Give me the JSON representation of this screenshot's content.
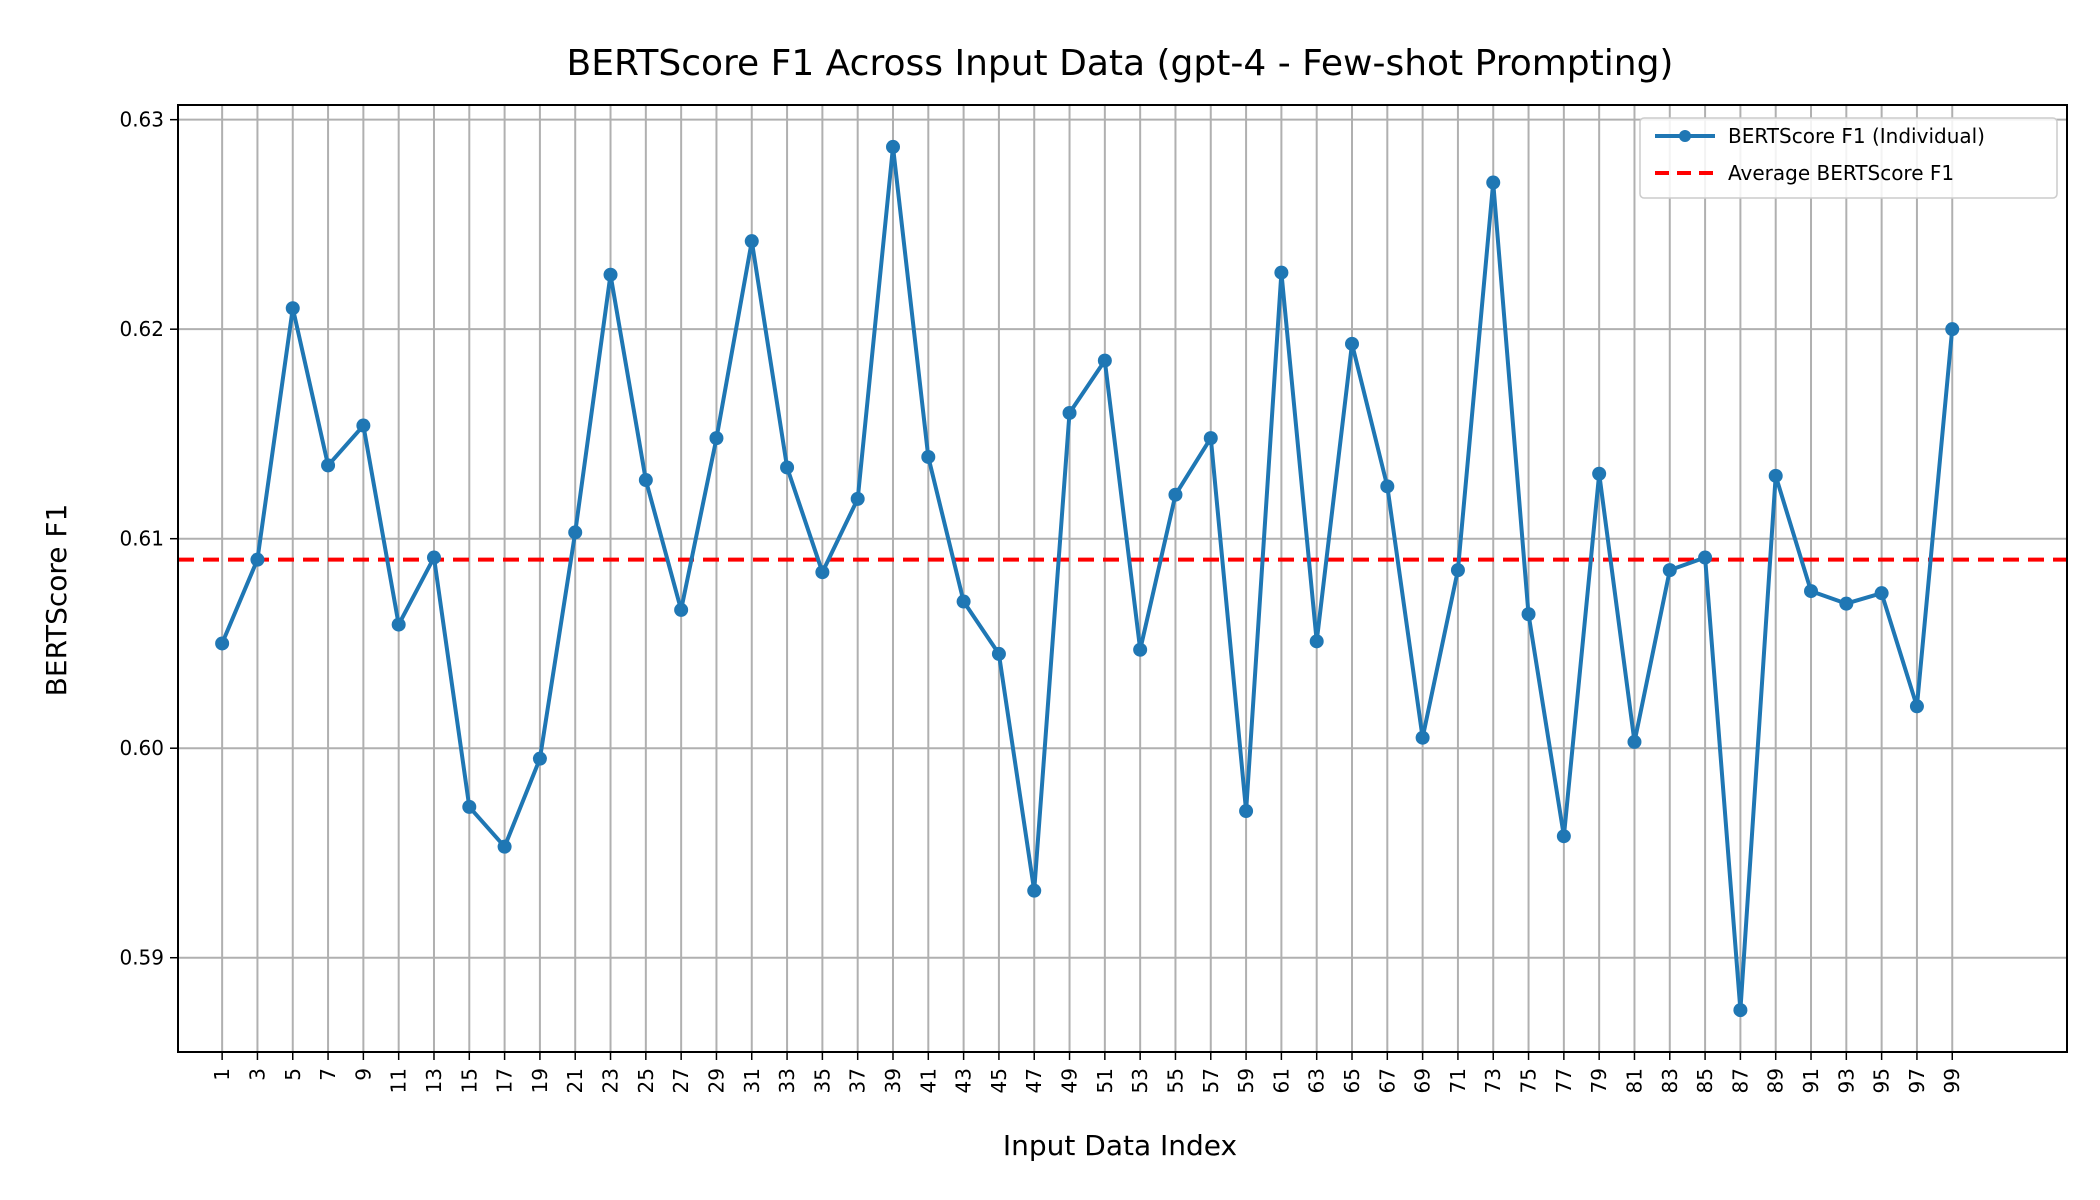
{
  "chart_data": {
    "type": "line",
    "title": "BERTScore F1 Across Input Data (gpt-4 - Few-shot Prompting)",
    "xlabel": "Input Data Index",
    "ylabel": "BERTScore F1",
    "xlim": [
      -1.5,
      105.5
    ],
    "ylim": [
      0.5855,
      0.6307
    ],
    "grid": true,
    "legend_position": "top-right",
    "x": [
      1,
      3,
      5,
      7,
      9,
      11,
      13,
      15,
      17,
      19,
      21,
      23,
      25,
      27,
      29,
      31,
      33,
      35,
      37,
      39,
      41,
      43,
      45,
      47,
      49,
      51,
      53,
      55,
      57,
      59,
      61,
      63,
      65,
      67,
      69,
      71,
      73,
      75,
      77,
      79,
      81,
      83,
      85,
      87,
      89,
      91,
      93,
      95,
      97,
      99
    ],
    "x_ticks": [
      "1",
      "3",
      "5",
      "7",
      "9",
      "11",
      "13",
      "15",
      "17",
      "19",
      "21",
      "23",
      "25",
      "27",
      "29",
      "31",
      "33",
      "35",
      "37",
      "39",
      "41",
      "43",
      "45",
      "47",
      "49",
      "51",
      "53",
      "55",
      "57",
      "59",
      "61",
      "63",
      "65",
      "67",
      "69",
      "71",
      "73",
      "75",
      "77",
      "79",
      "81",
      "83",
      "85",
      "87",
      "89",
      "91",
      "93",
      "95",
      "97",
      "99"
    ],
    "y_ticks": [
      "0.59",
      "0.60",
      "0.61",
      "0.62",
      "0.63"
    ],
    "y_tick_values": [
      0.59,
      0.6,
      0.61,
      0.62,
      0.63
    ],
    "series": [
      {
        "name": "BERTScore F1 (Individual)",
        "color": "#1f77b4",
        "style": "solid-with-markers",
        "values": [
          0.605,
          0.609,
          0.621,
          0.6135,
          0.6154,
          0.6059,
          0.6091,
          0.5972,
          0.5953,
          0.5995,
          0.6103,
          0.6226,
          0.6128,
          0.6066,
          0.6148,
          0.6242,
          0.6134,
          0.6084,
          0.6119,
          0.6287,
          0.6139,
          0.607,
          0.6045,
          0.5932,
          0.616,
          0.6185,
          0.6047,
          0.6121,
          0.6148,
          0.597,
          0.6227,
          0.6051,
          0.6193,
          0.6125,
          0.6005,
          0.6085,
          0.627,
          0.6064,
          0.5958,
          0.6131,
          0.6003,
          0.6085,
          0.6091,
          0.5875,
          0.613,
          0.6075,
          0.6069,
          0.6074,
          0.602,
          0.62
        ]
      },
      {
        "name": "Average BERTScore F1",
        "color": "#ff0000",
        "style": "dashed",
        "value": 0.609
      }
    ]
  }
}
